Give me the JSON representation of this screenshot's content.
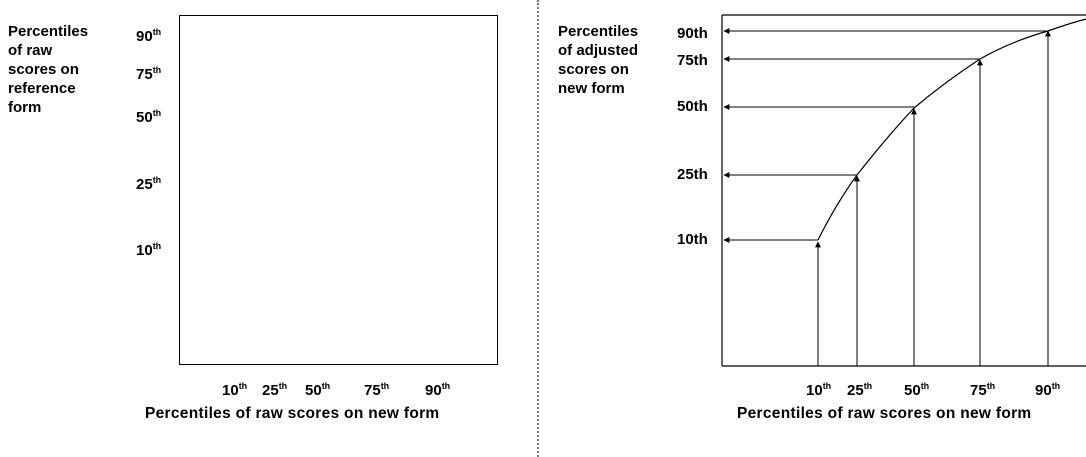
{
  "left_panel": {
    "y_axis_label_lines": [
      "Percentiles",
      "of raw",
      "scores on",
      "reference",
      "form"
    ],
    "y_ticks": [
      {
        "num": "90",
        "suf": "th"
      },
      {
        "num": "75",
        "suf": "th"
      },
      {
        "num": "50",
        "suf": "th"
      },
      {
        "num": "25",
        "suf": "th"
      },
      {
        "num": "10",
        "suf": "th"
      }
    ],
    "x_ticks": [
      {
        "num": "10",
        "suf": "th"
      },
      {
        "num": "25",
        "suf": "th"
      },
      {
        "num": "50",
        "suf": "th"
      },
      {
        "num": "75",
        "suf": "th"
      },
      {
        "num": "90",
        "suf": "th"
      }
    ],
    "x_axis_label": "Percentiles of raw scores on new form"
  },
  "right_panel": {
    "y_axis_label_lines": [
      "Percentiles",
      "of adjusted",
      "scores on",
      "new form"
    ],
    "y_ticks": [
      "90th",
      "75th",
      "50th",
      "25th",
      "10th"
    ],
    "x_ticks": [
      {
        "num": "10",
        "suf": "th"
      },
      {
        "num": "25",
        "suf": "th"
      },
      {
        "num": "50",
        "suf": "th"
      },
      {
        "num": "75",
        "suf": "th"
      },
      {
        "num": "90",
        "suf": "th"
      }
    ],
    "x_axis_label": "Percentiles of raw scores on new form",
    "curve_description": "monotone increasing concave curve mapping raw-score percentiles to adjusted-score percentiles"
  }
}
